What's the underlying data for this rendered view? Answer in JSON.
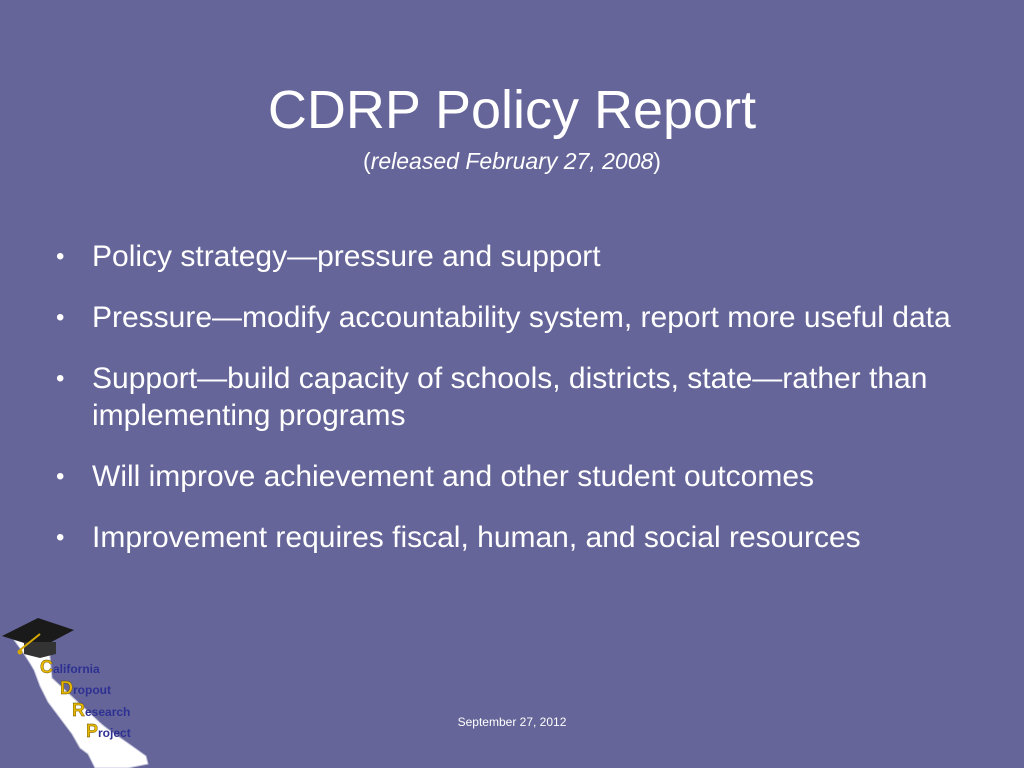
{
  "slide": {
    "title": "CDRP Policy Report",
    "subtitle": {
      "open_paren": "(",
      "text": "released February 27, 2008",
      "close_paren": ")"
    },
    "bullet_char": "•",
    "bullets": [
      "Policy strategy—pressure and support",
      "Pressure—modify accountability system, report more useful data",
      "Support—build capacity of schools, districts, state—rather than implementing programs",
      "Will improve achievement and other student outcomes",
      "Improvement requires fiscal, human, and social resources"
    ],
    "footer_date": "September 27, 2012"
  },
  "logo": {
    "lines": [
      {
        "initial": "C",
        "rest": "alifornia"
      },
      {
        "initial": "D",
        "rest": "ropout"
      },
      {
        "initial": "R",
        "rest": "esearch"
      },
      {
        "initial": "P",
        "rest": "roject"
      }
    ]
  },
  "colors": {
    "background": "#656599",
    "text": "#ffffff",
    "logo_initial": "#e8b800",
    "logo_text": "#2e3192"
  }
}
